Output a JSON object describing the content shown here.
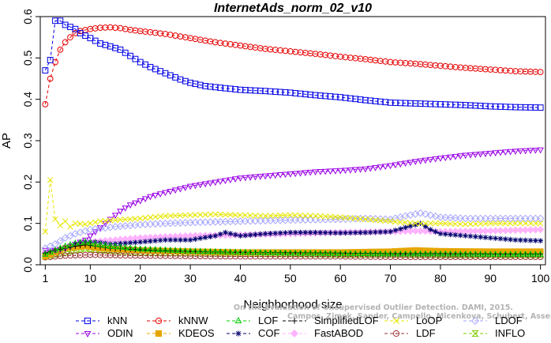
{
  "chart_data": {
    "type": "line",
    "title": "InternetAds_norm_02_v10",
    "xlabel": "Neighborhood size",
    "ylabel": "AP",
    "xlim": [
      0,
      101
    ],
    "ylim": [
      0,
      0.6
    ],
    "xticks": [
      1,
      10,
      20,
      30,
      40,
      50,
      60,
      70,
      80,
      90,
      100
    ],
    "yticks": [
      0.0,
      0.1,
      0.2,
      0.3,
      0.4,
      0.5,
      0.6
    ],
    "grid": false,
    "legend_position": "bottom",
    "watermark": [
      "On the Evaluation of Unsupervised Outlier Detection. DAMI, 2015.",
      "Campos, Zimek, Sander, Campello, Micenkova, Schubert, Assent, Houle"
    ],
    "series": [
      {
        "name": "kNN",
        "color": "#0000e6",
        "marker": "square",
        "points": [
          [
            1,
            0.47
          ],
          [
            2,
            0.495
          ],
          [
            3,
            0.59
          ],
          [
            4,
            0.59
          ],
          [
            5,
            0.58
          ],
          [
            6,
            0.575
          ],
          [
            7,
            0.57
          ],
          [
            8,
            0.56
          ],
          [
            10,
            0.548
          ],
          [
            12,
            0.535
          ],
          [
            14,
            0.528
          ],
          [
            16,
            0.52
          ],
          [
            18,
            0.505
          ],
          [
            20,
            0.49
          ],
          [
            22,
            0.478
          ],
          [
            24,
            0.468
          ],
          [
            26,
            0.458
          ],
          [
            28,
            0.448
          ],
          [
            30,
            0.44
          ],
          [
            33,
            0.432
          ],
          [
            36,
            0.428
          ],
          [
            40,
            0.423
          ],
          [
            45,
            0.42
          ],
          [
            50,
            0.416
          ],
          [
            55,
            0.41
          ],
          [
            60,
            0.405
          ],
          [
            65,
            0.398
          ],
          [
            70,
            0.392
          ],
          [
            75,
            0.39
          ],
          [
            80,
            0.388
          ],
          [
            85,
            0.386
          ],
          [
            90,
            0.383
          ],
          [
            95,
            0.381
          ],
          [
            100,
            0.38
          ]
        ]
      },
      {
        "name": "kNNW",
        "color": "#e60000",
        "marker": "circle",
        "points": [
          [
            1,
            0.388
          ],
          [
            2,
            0.45
          ],
          [
            3,
            0.49
          ],
          [
            4,
            0.52
          ],
          [
            5,
            0.538
          ],
          [
            6,
            0.55
          ],
          [
            7,
            0.56
          ],
          [
            8,
            0.565
          ],
          [
            10,
            0.57
          ],
          [
            12,
            0.573
          ],
          [
            14,
            0.574
          ],
          [
            16,
            0.572
          ],
          [
            18,
            0.568
          ],
          [
            20,
            0.565
          ],
          [
            25,
            0.558
          ],
          [
            30,
            0.548
          ],
          [
            35,
            0.538
          ],
          [
            40,
            0.53
          ],
          [
            45,
            0.522
          ],
          [
            50,
            0.516
          ],
          [
            55,
            0.51
          ],
          [
            60,
            0.503
          ],
          [
            65,
            0.497
          ],
          [
            70,
            0.49
          ],
          [
            75,
            0.486
          ],
          [
            80,
            0.481
          ],
          [
            85,
            0.476
          ],
          [
            90,
            0.472
          ],
          [
            95,
            0.468
          ],
          [
            100,
            0.466
          ]
        ]
      },
      {
        "name": "LOF",
        "color": "#00cc00",
        "marker": "triangle-up",
        "points": [
          [
            1,
            0.025
          ],
          [
            3,
            0.035
          ],
          [
            5,
            0.045
          ],
          [
            7,
            0.052
          ],
          [
            9,
            0.055
          ],
          [
            11,
            0.05
          ],
          [
            14,
            0.045
          ],
          [
            20,
            0.038
          ],
          [
            30,
            0.033
          ],
          [
            40,
            0.03
          ],
          [
            50,
            0.028
          ],
          [
            60,
            0.027
          ],
          [
            70,
            0.026
          ],
          [
            80,
            0.026
          ],
          [
            90,
            0.025
          ],
          [
            100,
            0.025
          ]
        ]
      },
      {
        "name": "SimplifiedLOF",
        "color": "#000000",
        "marker": "plus",
        "points": [
          [
            1,
            0.028
          ],
          [
            3,
            0.035
          ],
          [
            5,
            0.04
          ],
          [
            7,
            0.045
          ],
          [
            9,
            0.048
          ],
          [
            11,
            0.045
          ],
          [
            14,
            0.04
          ],
          [
            20,
            0.036
          ],
          [
            30,
            0.032
          ],
          [
            40,
            0.03
          ],
          [
            50,
            0.029
          ],
          [
            60,
            0.028
          ],
          [
            70,
            0.027
          ],
          [
            80,
            0.027
          ],
          [
            90,
            0.026
          ],
          [
            100,
            0.026
          ]
        ]
      },
      {
        "name": "LoOP",
        "color": "#e6e600",
        "marker": "x",
        "points": [
          [
            1,
            0.08
          ],
          [
            2,
            0.205
          ],
          [
            3,
            0.11
          ],
          [
            4,
            0.095
          ],
          [
            5,
            0.105
          ],
          [
            6,
            0.092
          ],
          [
            7,
            0.1
          ],
          [
            9,
            0.098
          ],
          [
            12,
            0.105
          ],
          [
            15,
            0.108
          ],
          [
            20,
            0.112
          ],
          [
            25,
            0.118
          ],
          [
            30,
            0.12
          ],
          [
            35,
            0.122
          ],
          [
            40,
            0.12
          ],
          [
            45,
            0.118
          ],
          [
            50,
            0.12
          ],
          [
            55,
            0.118
          ],
          [
            60,
            0.115
          ],
          [
            65,
            0.11
          ],
          [
            70,
            0.105
          ],
          [
            75,
            0.1
          ],
          [
            80,
            0.1
          ],
          [
            85,
            0.098
          ],
          [
            90,
            0.1
          ],
          [
            95,
            0.1
          ],
          [
            100,
            0.1
          ]
        ]
      },
      {
        "name": "LDOF",
        "color": "#a6a6ff",
        "marker": "diamond",
        "points": [
          [
            1,
            0.04
          ],
          [
            3,
            0.05
          ],
          [
            5,
            0.065
          ],
          [
            7,
            0.075
          ],
          [
            10,
            0.085
          ],
          [
            15,
            0.092
          ],
          [
            20,
            0.097
          ],
          [
            25,
            0.1
          ],
          [
            30,
            0.102
          ],
          [
            40,
            0.105
          ],
          [
            50,
            0.108
          ],
          [
            60,
            0.11
          ],
          [
            65,
            0.112
          ],
          [
            70,
            0.11
          ],
          [
            73,
            0.118
          ],
          [
            76,
            0.125
          ],
          [
            78,
            0.12
          ],
          [
            80,
            0.115
          ],
          [
            85,
            0.112
          ],
          [
            90,
            0.112
          ],
          [
            95,
            0.112
          ],
          [
            100,
            0.112
          ]
        ]
      },
      {
        "name": "ODIN",
        "color": "#9900e6",
        "marker": "triangle-down",
        "points": [
          [
            1,
            0.035
          ],
          [
            3,
            0.035
          ],
          [
            5,
            0.04
          ],
          [
            7,
            0.05
          ],
          [
            9,
            0.06
          ],
          [
            10,
            0.07
          ],
          [
            12,
            0.09
          ],
          [
            14,
            0.11
          ],
          [
            16,
            0.13
          ],
          [
            18,
            0.145
          ],
          [
            20,
            0.155
          ],
          [
            22,
            0.165
          ],
          [
            25,
            0.175
          ],
          [
            30,
            0.19
          ],
          [
            35,
            0.2
          ],
          [
            40,
            0.21
          ],
          [
            45,
            0.215
          ],
          [
            50,
            0.22
          ],
          [
            55,
            0.225
          ],
          [
            60,
            0.228
          ],
          [
            65,
            0.232
          ],
          [
            70,
            0.24
          ],
          [
            75,
            0.25
          ],
          [
            80,
            0.258
          ],
          [
            85,
            0.265
          ],
          [
            90,
            0.27
          ],
          [
            95,
            0.275
          ],
          [
            100,
            0.278
          ]
        ]
      },
      {
        "name": "KDEOS",
        "color": "#e6a600",
        "marker": "square-filled",
        "points": [
          [
            1,
            0.02
          ],
          [
            5,
            0.04
          ],
          [
            9,
            0.045
          ],
          [
            12,
            0.04
          ],
          [
            20,
            0.035
          ],
          [
            30,
            0.032
          ],
          [
            40,
            0.03
          ],
          [
            50,
            0.03
          ],
          [
            60,
            0.03
          ],
          [
            70,
            0.032
          ],
          [
            75,
            0.035
          ],
          [
            80,
            0.033
          ],
          [
            90,
            0.032
          ],
          [
            100,
            0.032
          ]
        ]
      },
      {
        "name": "COF",
        "color": "#00006e",
        "marker": "asterisk",
        "points": [
          [
            1,
            0.025
          ],
          [
            3,
            0.03
          ],
          [
            5,
            0.04
          ],
          [
            7,
            0.05
          ],
          [
            9,
            0.055
          ],
          [
            11,
            0.055
          ],
          [
            14,
            0.05
          ],
          [
            17,
            0.052
          ],
          [
            20,
            0.055
          ],
          [
            25,
            0.06
          ],
          [
            30,
            0.06
          ],
          [
            35,
            0.07
          ],
          [
            37,
            0.078
          ],
          [
            40,
            0.07
          ],
          [
            45,
            0.075
          ],
          [
            50,
            0.078
          ],
          [
            55,
            0.078
          ],
          [
            60,
            0.077
          ],
          [
            65,
            0.078
          ],
          [
            70,
            0.08
          ],
          [
            73,
            0.09
          ],
          [
            76,
            0.1
          ],
          [
            78,
            0.085
          ],
          [
            80,
            0.075
          ],
          [
            85,
            0.07
          ],
          [
            90,
            0.065
          ],
          [
            95,
            0.06
          ],
          [
            100,
            0.058
          ]
        ]
      },
      {
        "name": "FastABOD",
        "color": "#ffb3ff",
        "marker": "diamond-filled",
        "points": [
          [
            1,
            0.03
          ],
          [
            5,
            0.04
          ],
          [
            10,
            0.055
          ],
          [
            15,
            0.06
          ],
          [
            20,
            0.065
          ],
          [
            30,
            0.07
          ],
          [
            40,
            0.072
          ],
          [
            50,
            0.075
          ],
          [
            60,
            0.078
          ],
          [
            70,
            0.08
          ],
          [
            75,
            0.082
          ],
          [
            80,
            0.08
          ],
          [
            90,
            0.082
          ],
          [
            100,
            0.085
          ]
        ]
      },
      {
        "name": "LDF",
        "color": "#993333",
        "marker": "circle-dot",
        "points": [
          [
            1,
            0.018
          ],
          [
            5,
            0.022
          ],
          [
            10,
            0.024
          ],
          [
            20,
            0.022
          ],
          [
            30,
            0.021
          ],
          [
            40,
            0.02
          ],
          [
            50,
            0.02
          ],
          [
            60,
            0.02
          ],
          [
            70,
            0.019
          ],
          [
            80,
            0.019
          ],
          [
            90,
            0.019
          ],
          [
            100,
            0.019
          ]
        ]
      },
      {
        "name": "INFLO",
        "color": "#80cc00",
        "marker": "hourglass",
        "points": [
          [
            1,
            0.02
          ],
          [
            5,
            0.03
          ],
          [
            9,
            0.04
          ],
          [
            12,
            0.035
          ],
          [
            20,
            0.03
          ],
          [
            30,
            0.028
          ],
          [
            40,
            0.027
          ],
          [
            50,
            0.026
          ],
          [
            60,
            0.025
          ],
          [
            70,
            0.025
          ],
          [
            80,
            0.024
          ],
          [
            90,
            0.024
          ],
          [
            100,
            0.024
          ]
        ]
      }
    ]
  }
}
